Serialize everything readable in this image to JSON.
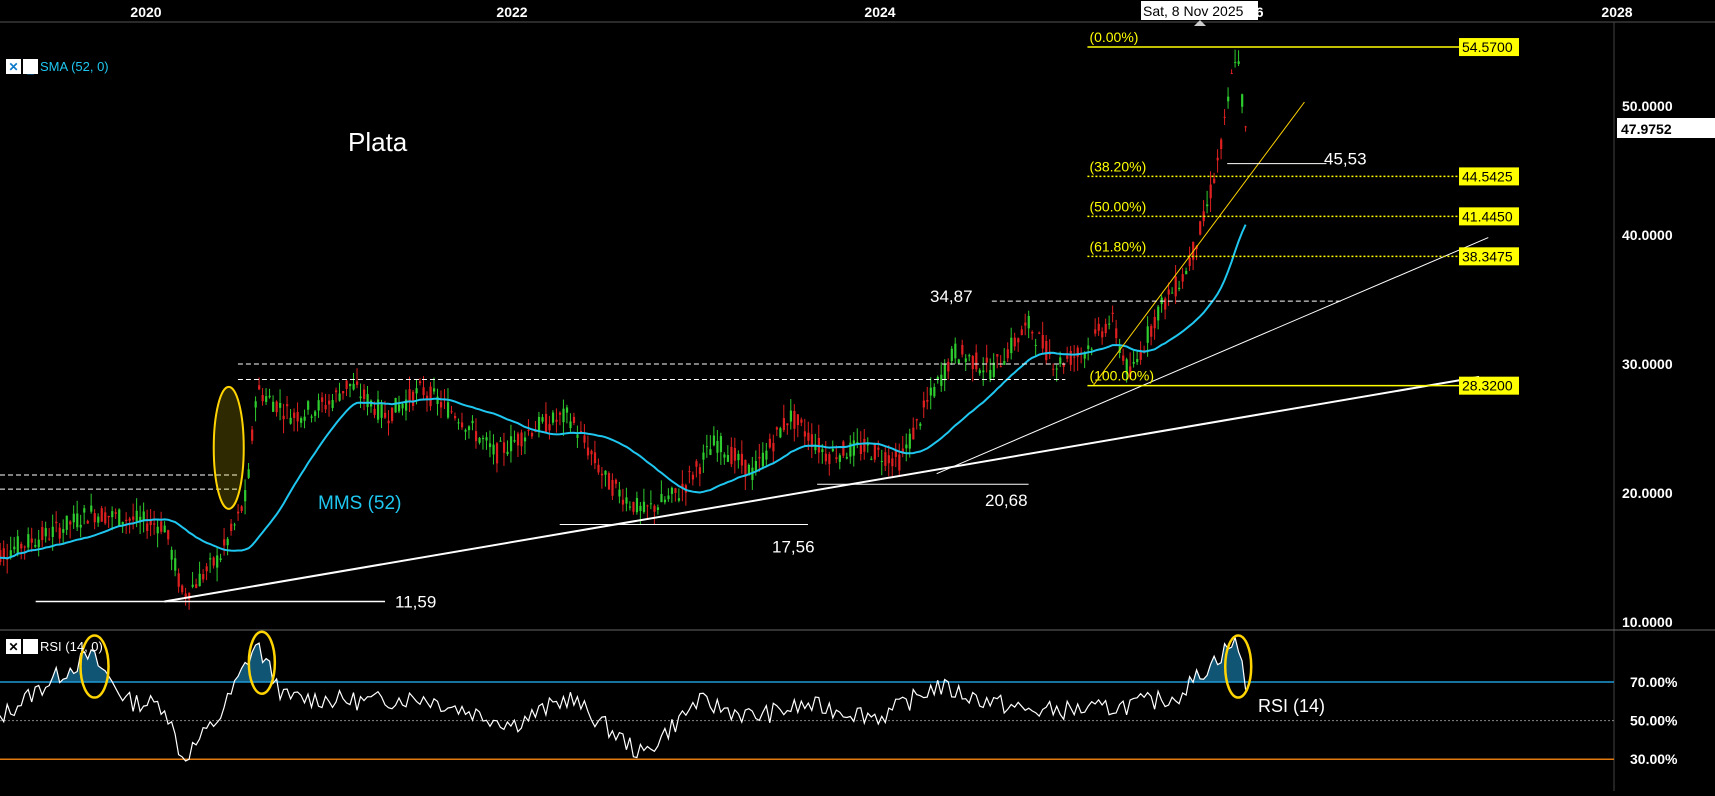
{
  "chart_data": [
    {
      "type": "candlestick",
      "title": "Plata",
      "x_axis": {
        "ticks": [
          "2020",
          "2022",
          "2024",
          "2026",
          "2028"
        ],
        "crosshair_label": "Sat, 8 Nov 2025"
      },
      "y_axis": {
        "ticks": [
          "10.0000",
          "20.0000",
          "30.0000",
          "40.0000",
          "50.0000"
        ],
        "range": [
          10,
          57
        ],
        "current_price": "47.9752"
      },
      "indicator_badge": "SMA (52, 0)",
      "series": [
        {
          "name": "MMS (52)",
          "color": "#1fc7f0"
        }
      ],
      "fibonacci": [
        {
          "label": "(0.00%)",
          "value": "54.5700"
        },
        {
          "label": "(38.20%)",
          "value": "44.5425"
        },
        {
          "label": "(50.00%)",
          "value": "41.4450"
        },
        {
          "label": "(61.80%)",
          "value": "38.3475"
        },
        {
          "label": "(100.00%)",
          "value": "28.3200"
        }
      ],
      "annotations": [
        "11,59",
        "17,56",
        "20,68",
        "34,87",
        "45,53"
      ],
      "colors": {
        "up": "#2ecc2e",
        "down": "#e02020",
        "fib": "#ffff00",
        "sma": "#1fc7f0",
        "trend": "#ffffff"
      }
    },
    {
      "type": "line",
      "indicator_badge": "RSI (14, 0)",
      "label": "RSI (14)",
      "y_axis": {
        "ticks": [
          "30.00%",
          "50.00%",
          "70.00%"
        ],
        "range": [
          25,
          95
        ]
      },
      "levels": [
        {
          "value": 70,
          "color": "#1f9ad6"
        },
        {
          "value": 50,
          "color": "#888888"
        },
        {
          "value": 30,
          "color": "#e07a10"
        }
      ]
    }
  ]
}
